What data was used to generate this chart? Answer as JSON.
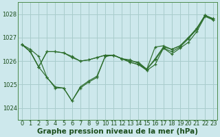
{
  "background_color": "#cde8ec",
  "grid_color": "#a8cccc",
  "line_color": "#2d6e2d",
  "marker_color": "#2d6e2d",
  "xlabel": "Graphe pression niveau de la mer (hPa)",
  "xlabel_fontsize": 7.5,
  "xlabel_fontweight": "bold",
  "xlim": [
    -0.5,
    23.5
  ],
  "ylim": [
    1023.5,
    1028.5
  ],
  "yticks": [
    1024,
    1025,
    1026,
    1027,
    1028
  ],
  "xticks": [
    0,
    1,
    2,
    3,
    4,
    5,
    6,
    7,
    8,
    9,
    10,
    11,
    12,
    13,
    14,
    15,
    16,
    17,
    18,
    19,
    20,
    21,
    22,
    23
  ],
  "series": [
    [
      1026.7,
      1026.5,
      1026.2,
      1025.3,
      1024.85,
      1024.85,
      1024.3,
      1024.85,
      1025.1,
      1025.3,
      1026.2,
      1026.25,
      1026.1,
      1025.95,
      1025.85,
      1025.6,
      1025.85,
      1026.55,
      1026.3,
      1026.55,
      1026.8,
      1027.25,
      1027.9,
      1027.75
    ],
    [
      1026.7,
      1026.4,
      1025.75,
      1025.3,
      1024.9,
      1024.85,
      1024.3,
      1024.9,
      1025.15,
      1025.35,
      1026.2,
      1026.25,
      1026.1,
      1025.95,
      1025.85,
      1025.65,
      1026.05,
      1026.55,
      1026.4,
      1026.6,
      1026.95,
      1027.35,
      1027.95,
      1027.75
    ],
    [
      1026.7,
      1026.4,
      1025.75,
      1026.4,
      1026.4,
      1026.35,
      1026.2,
      1026.0,
      1026.05,
      1026.15,
      1026.25,
      1026.25,
      1026.1,
      1026.0,
      1025.95,
      1025.65,
      1026.6,
      1026.65,
      1026.5,
      1026.65,
      1027.0,
      1027.35,
      1027.95,
      1027.8
    ],
    [
      1026.7,
      1026.4,
      1025.75,
      1026.4,
      1026.4,
      1026.35,
      1026.15,
      1026.0,
      1026.05,
      1026.15,
      1026.25,
      1026.25,
      1026.1,
      1026.05,
      1025.9,
      1025.65,
      1026.1,
      1026.6,
      1026.5,
      1026.65,
      1027.0,
      1027.4,
      1027.95,
      1027.8
    ]
  ],
  "tick_fontsize": 6,
  "title": ""
}
